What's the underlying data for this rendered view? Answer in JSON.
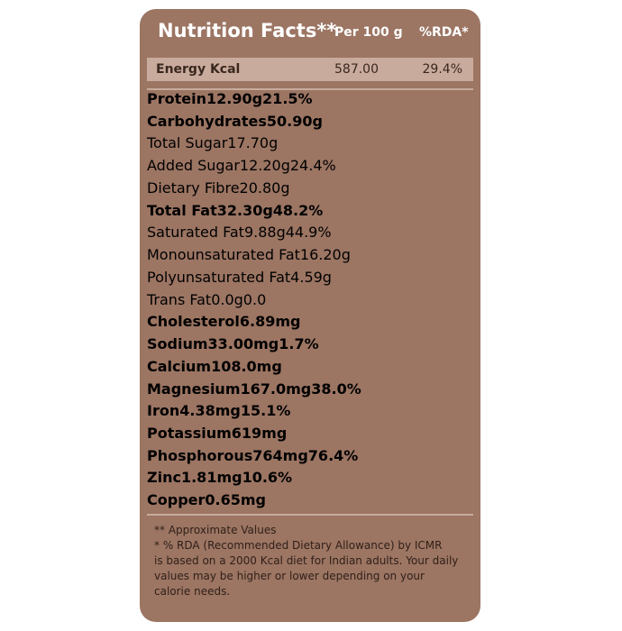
{
  "header": {
    "title": "Nutrition Facts**",
    "per": "Per 100 g",
    "rda": "%RDA*"
  },
  "energy": {
    "name": "Energy Kcal",
    "value": "587.00",
    "rda": "29.4%"
  },
  "table": {
    "rows": [
      {
        "name": "Protein",
        "value": "12.90",
        "unit": "g",
        "rda": "21.5%",
        "indent": false
      },
      {
        "name": "Carbohydrates",
        "value": "50.90",
        "unit": "g",
        "rda": null,
        "indent": false
      },
      {
        "name": "Total Sugar",
        "value": "17.70",
        "unit": "g",
        "rda": null,
        "indent": true
      },
      {
        "name": "Added Sugar",
        "value": "12.20",
        "unit": "g",
        "rda": "24.4%",
        "indent": true
      },
      {
        "name": "Dietary Fibre",
        "value": "20.80",
        "unit": "g",
        "rda": null,
        "indent": true
      },
      {
        "name": "Total Fat",
        "value": "32.30",
        "unit": "g",
        "rda": "48.2%",
        "indent": false
      },
      {
        "name": "Saturated Fat",
        "value": "9.88",
        "unit": "g",
        "rda": "44.9%",
        "indent": true
      },
      {
        "name": "Monounsaturated Fat",
        "value": "16.20",
        "unit": "g",
        "rda": null,
        "indent": true
      },
      {
        "name": "Polyunsaturated Fat",
        "value": "4.59",
        "unit": "g",
        "rda": null,
        "indent": true
      },
      {
        "name": "Trans Fat",
        "value": "0.0",
        "unit": "g",
        "rda": "0.0",
        "indent": true
      },
      {
        "name": "Cholesterol",
        "value": "6.89",
        "unit": "mg",
        "rda": null,
        "indent": false
      },
      {
        "name": "Sodium",
        "value": "33.00",
        "unit": "mg",
        "rda": "1.7%",
        "indent": false
      },
      {
        "name": "Calcium",
        "value": "108.0",
        "unit": "mg",
        "rda": null,
        "indent": false
      },
      {
        "name": "Magnesium",
        "value": "167.0",
        "unit": "mg",
        "rda": "38.0%",
        "indent": false
      },
      {
        "name": "Iron",
        "value": "4.38",
        "unit": "mg",
        "rda": "15.1%",
        "indent": false
      },
      {
        "name": "Potassium",
        "value": "619",
        "unit": "mg",
        "rda": null,
        "indent": false
      },
      {
        "name": "Phosphorous",
        "value": "764",
        "unit": "mg",
        "rda": "76.4%",
        "indent": false
      },
      {
        "name": "Zinc",
        "value": "1.81",
        "unit": "mg",
        "rda": "10.6%",
        "indent": false
      },
      {
        "name": "Copper",
        "value": "0.65",
        "unit": "mg",
        "rda": null,
        "indent": false
      }
    ]
  },
  "footer": {
    "lines": [
      "** Approximate Values",
      "*  % RDA (Recommended Dietary Allowance) by ICMR",
      "is based on a 2000 Kcal diet for Indian adults. Your daily",
      "values may be higher or lower depending on your",
      "calorie needs."
    ]
  }
}
